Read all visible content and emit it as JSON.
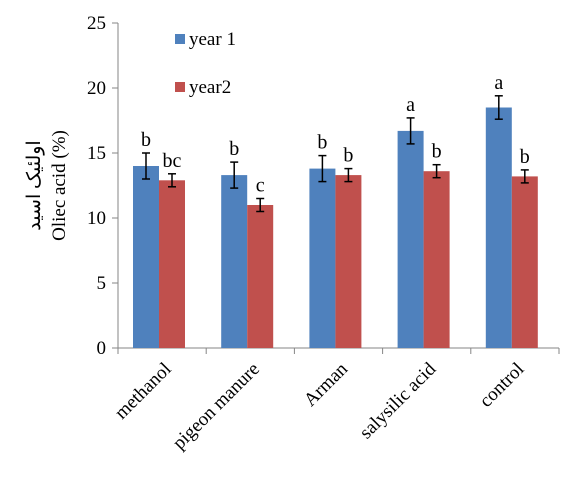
{
  "chart_data": {
    "type": "bar",
    "categories": [
      "methanol",
      "pigeon manure",
      "Arman",
      "salysilic acid",
      "control"
    ],
    "series": [
      {
        "name": "year 1",
        "color": "#4f81bd",
        "values": [
          14.0,
          13.3,
          13.8,
          16.7,
          18.5
        ],
        "errors": [
          1.0,
          1.0,
          1.0,
          1.0,
          0.9
        ],
        "labels": [
          "b",
          "b",
          "b",
          "a",
          "a"
        ]
      },
      {
        "name": "year2",
        "color": "#c0504d",
        "values": [
          12.9,
          11.0,
          13.3,
          13.6,
          13.2
        ],
        "errors": [
          0.5,
          0.5,
          0.5,
          0.5,
          0.5
        ],
        "labels": [
          "bc",
          "c",
          "b",
          "b",
          "b"
        ]
      }
    ],
    "ylabel_lines": [
      "اولئیک اسید",
      "Oliec acid (%)"
    ],
    "xlabel": "",
    "ylim": [
      0,
      25
    ],
    "yticks": [
      0,
      5,
      10,
      15,
      20,
      25
    ],
    "grid": false,
    "legend_position": "top-left"
  }
}
